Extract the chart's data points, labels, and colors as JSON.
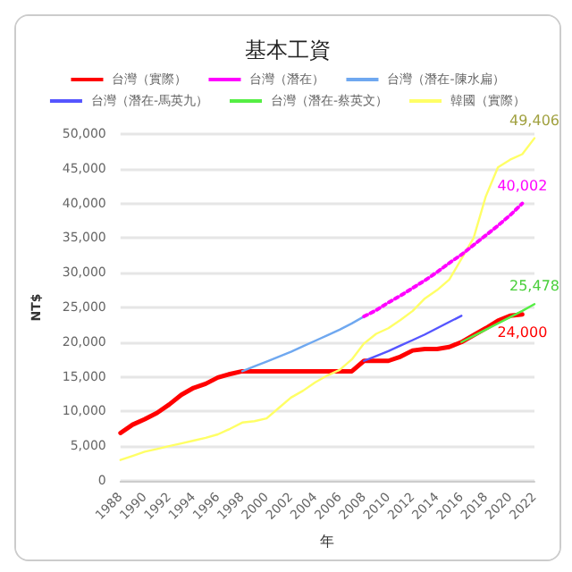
{
  "chart_data": {
    "type": "line",
    "title": "基本工資",
    "xlabel": "年",
    "ylabel": "NT$",
    "xlim": [
      1988,
      2022
    ],
    "xticks": [
      1988,
      1990,
      1992,
      1994,
      1996,
      1998,
      2000,
      2002,
      2004,
      2006,
      2008,
      2010,
      2012,
      2014,
      2016,
      2018,
      2020,
      2022
    ],
    "ylim": [
      0,
      50000
    ],
    "yticks": [
      {
        "value": 0,
        "label": "0"
      },
      {
        "value": 5000,
        "label": "5,000"
      },
      {
        "value": 10000,
        "label": "10,000"
      },
      {
        "value": 15000,
        "label": "15,000"
      },
      {
        "value": 20000,
        "label": "20,000"
      },
      {
        "value": 25000,
        "label": "25,000"
      },
      {
        "value": 30000,
        "label": "30,000"
      },
      {
        "value": 35000,
        "label": "35,000"
      },
      {
        "value": 40000,
        "label": "40,000"
      },
      {
        "value": 45000,
        "label": "45,000"
      },
      {
        "value": 50000,
        "label": "50,000"
      }
    ],
    "grid": "y",
    "legend": "top",
    "marker": "none",
    "series": [
      {
        "name": "台灣（實際）",
        "color": "#ff0000",
        "line_style": "solid",
        "x": [
          1988,
          1989,
          1990,
          1991,
          1992,
          1993,
          1994,
          1995,
          1996,
          1997,
          1998,
          1999,
          2000,
          2001,
          2002,
          2003,
          2004,
          2005,
          2006,
          2007,
          2008,
          2009,
          2010,
          2011,
          2012,
          2013,
          2014,
          2015,
          2016,
          2017,
          2018,
          2019,
          2020,
          2021
        ],
        "values": [
          6900,
          8100,
          8900,
          9800,
          11000,
          12400,
          13400,
          14000,
          14900,
          15400,
          15800,
          15800,
          15800,
          15800,
          15800,
          15800,
          15800,
          15800,
          15800,
          15800,
          17300,
          17300,
          17300,
          17900,
          18800,
          19000,
          19000,
          19300,
          20000,
          21000,
          22000,
          23100,
          23800,
          24000
        ],
        "value_labels": [
          null,
          null,
          null,
          null,
          null,
          null,
          null,
          null,
          null,
          null,
          null,
          null,
          null,
          null,
          null,
          null,
          null,
          null,
          null,
          null,
          null,
          null,
          null,
          null,
          null,
          null,
          null,
          null,
          null,
          null,
          null,
          null,
          null,
          "24,000"
        ]
      },
      {
        "name": "台灣（潛在）",
        "color": "#ff00ff",
        "line_style": "dotted",
        "x": [
          2008,
          2009,
          2010,
          2011,
          2012,
          2013,
          2014,
          2015,
          2016,
          2017,
          2018,
          2019,
          2020,
          2021
        ],
        "values": [
          23700,
          24600,
          25700,
          26700,
          27800,
          28900,
          30100,
          31400,
          32600,
          34000,
          35400,
          36800,
          38300,
          40002
        ],
        "value_labels": [
          null,
          null,
          null,
          null,
          null,
          null,
          null,
          null,
          null,
          null,
          null,
          null,
          null,
          "40,002"
        ]
      },
      {
        "name": "台灣（潛在-陳水扁）",
        "color": "#6fa8f0",
        "line_style": "solid",
        "x": [
          1998,
          1999,
          2000,
          2001,
          2002,
          2003,
          2004,
          2005,
          2006,
          2007,
          2008
        ],
        "values": [
          15800,
          16500,
          17200,
          17900,
          18600,
          19400,
          20200,
          21000,
          21800,
          22700,
          23700
        ]
      },
      {
        "name": "台灣（潛在-馬英九）",
        "color": "#5555ff",
        "line_style": "solid",
        "x": [
          2008,
          2009,
          2010,
          2011,
          2012,
          2013,
          2014,
          2015,
          2016
        ],
        "values": [
          17300,
          18000,
          18700,
          19500,
          20300,
          21100,
          22000,
          22900,
          23800
        ]
      },
      {
        "name": "台灣（潛在-蔡英文）",
        "color": "#55ee44",
        "line_style": "solid",
        "x": [
          2016,
          2017,
          2018,
          2019,
          2020,
          2021,
          2022
        ],
        "values": [
          20000,
          20900,
          21800,
          22700,
          23600,
          24500,
          25478
        ],
        "value_labels": [
          null,
          null,
          null,
          null,
          null,
          null,
          "25,478"
        ]
      },
      {
        "name": "韓國（實際）",
        "color": "#ffff66",
        "line_style": "solid",
        "x": [
          1988,
          1989,
          1990,
          1991,
          1992,
          1993,
          1994,
          1995,
          1996,
          1997,
          1998,
          1999,
          2000,
          2001,
          2002,
          2003,
          2004,
          2005,
          2006,
          2007,
          2008,
          2009,
          2010,
          2011,
          2012,
          2013,
          2014,
          2015,
          2016,
          2017,
          2018,
          2019,
          2020,
          2021,
          2022
        ],
        "values": [
          3000,
          3600,
          4200,
          4600,
          5000,
          5400,
          5800,
          6200,
          6700,
          7500,
          8400,
          8600,
          9000,
          10500,
          12000,
          13000,
          14200,
          15200,
          16000,
          17500,
          19800,
          21200,
          22000,
          23200,
          24500,
          26300,
          27500,
          29000,
          32000,
          35000,
          41000,
          45200,
          46300,
          47100,
          49406
        ],
        "value_labels": [
          null,
          null,
          null,
          null,
          null,
          null,
          null,
          null,
          null,
          null,
          null,
          null,
          null,
          null,
          null,
          null,
          null,
          null,
          null,
          null,
          null,
          null,
          null,
          null,
          null,
          null,
          null,
          null,
          null,
          null,
          null,
          null,
          null,
          null,
          "49,406"
        ]
      }
    ]
  }
}
